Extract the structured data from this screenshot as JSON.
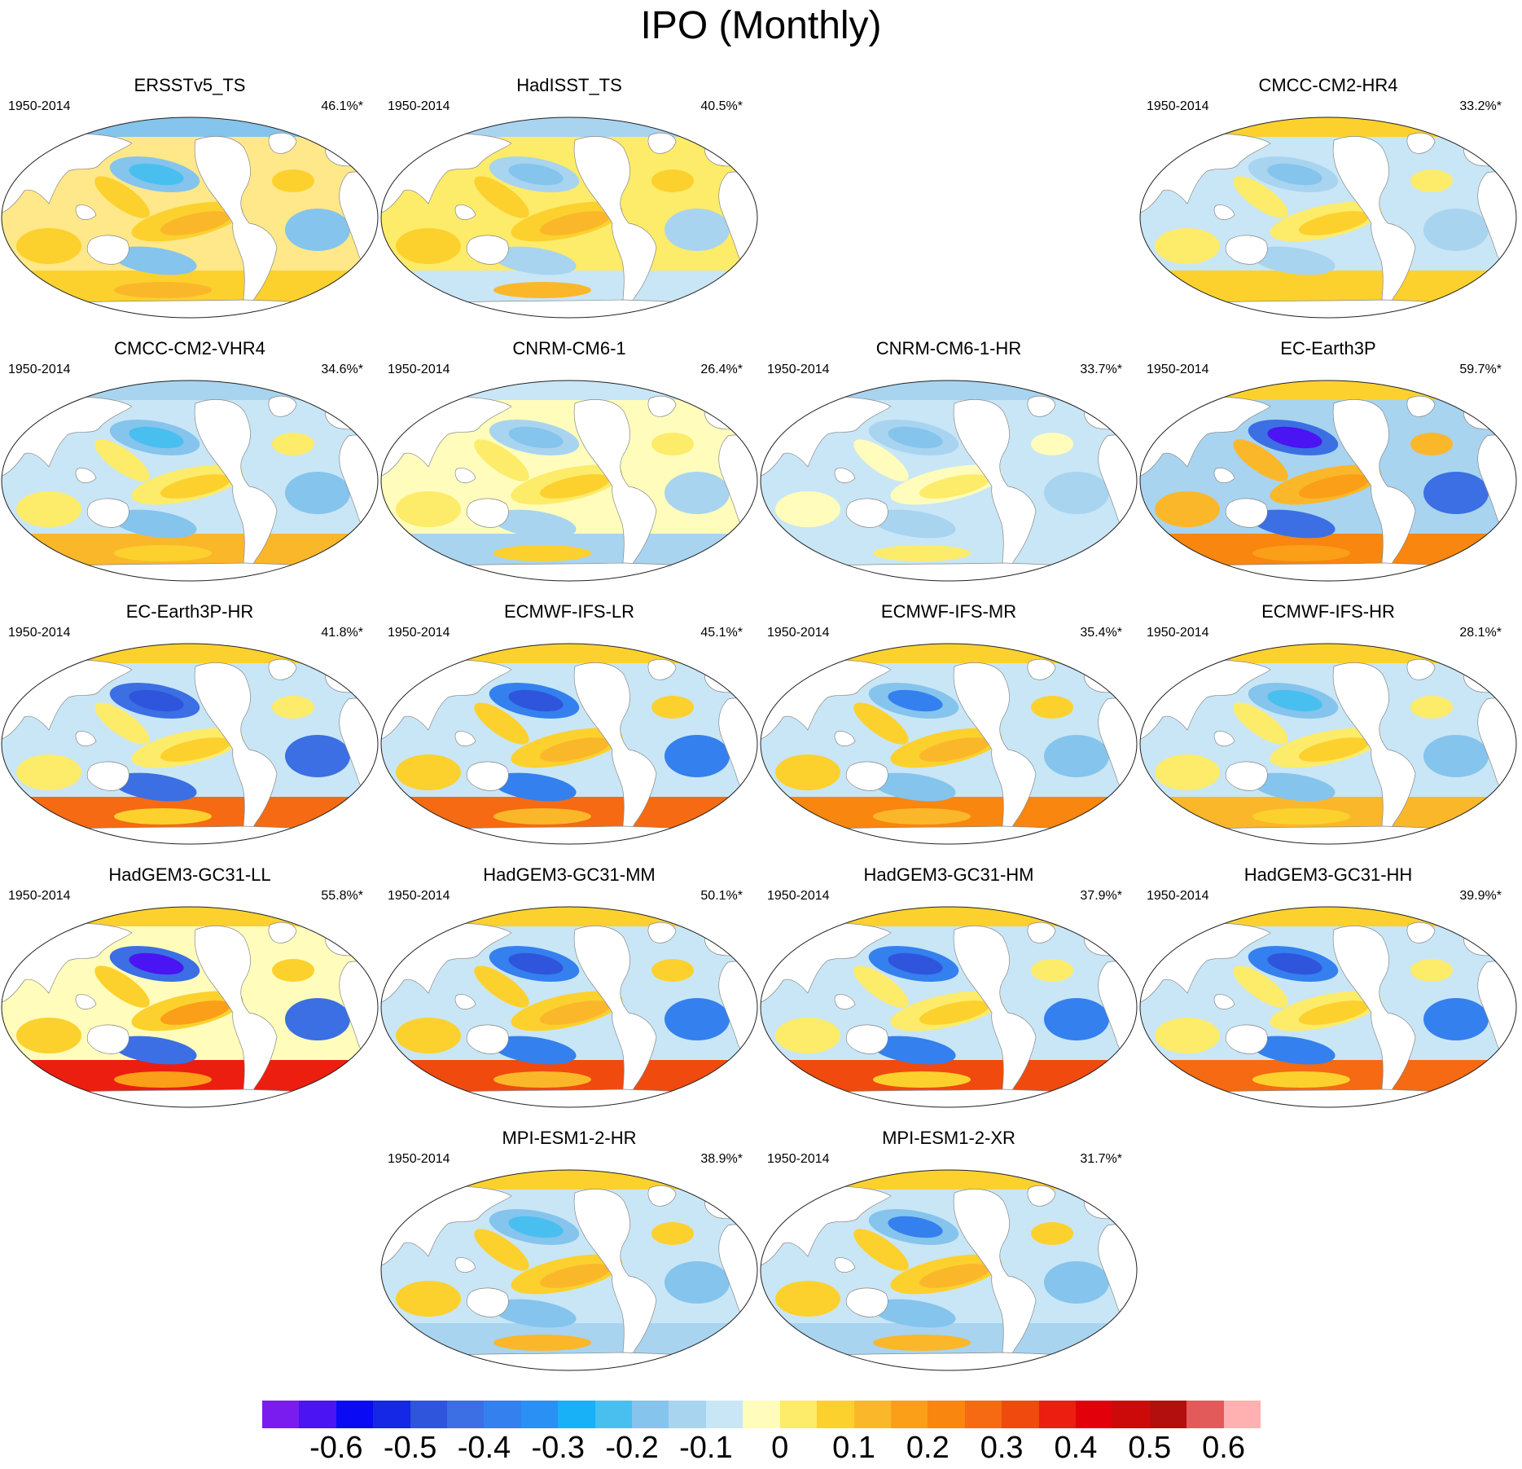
{
  "title": "IPO (Monthly)",
  "panels": [
    {
      "row": 0,
      "col": 0,
      "title": "ERSSTv5_TS",
      "period": "1950-2014",
      "pct": "46.1%*"
    },
    {
      "row": 0,
      "col": 1,
      "title": "HadISST_TS",
      "period": "1950-2014",
      "pct": "40.5%*"
    },
    {
      "row": 0,
      "col": 3,
      "title": "CMCC-CM2-HR4",
      "period": "1950-2014",
      "pct": "33.2%*"
    },
    {
      "row": 1,
      "col": 0,
      "title": "CMCC-CM2-VHR4",
      "period": "1950-2014",
      "pct": "34.6%*"
    },
    {
      "row": 1,
      "col": 1,
      "title": "CNRM-CM6-1",
      "period": "1950-2014",
      "pct": "26.4%*"
    },
    {
      "row": 1,
      "col": 2,
      "title": "CNRM-CM6-1-HR",
      "period": "1950-2014",
      "pct": "33.7%*"
    },
    {
      "row": 1,
      "col": 3,
      "title": "EC-Earth3P",
      "period": "1950-2014",
      "pct": "59.7%*"
    },
    {
      "row": 2,
      "col": 0,
      "title": "EC-Earth3P-HR",
      "period": "1950-2014",
      "pct": "41.8%*"
    },
    {
      "row": 2,
      "col": 1,
      "title": "ECMWF-IFS-LR",
      "period": "1950-2014",
      "pct": "45.1%*"
    },
    {
      "row": 2,
      "col": 2,
      "title": "ECMWF-IFS-MR",
      "period": "1950-2014",
      "pct": "35.4%*"
    },
    {
      "row": 2,
      "col": 3,
      "title": "ECMWF-IFS-HR",
      "period": "1950-2014",
      "pct": "28.1%*"
    },
    {
      "row": 3,
      "col": 0,
      "title": "HadGEM3-GC31-LL",
      "period": "1950-2014",
      "pct": "55.8%*"
    },
    {
      "row": 3,
      "col": 1,
      "title": "HadGEM3-GC31-MM",
      "period": "1950-2014",
      "pct": "50.1%*"
    },
    {
      "row": 3,
      "col": 2,
      "title": "HadGEM3-GC31-HM",
      "period": "1950-2014",
      "pct": "37.9%*"
    },
    {
      "row": 3,
      "col": 3,
      "title": "HadGEM3-GC31-HH",
      "period": "1950-2014",
      "pct": "39.9%*"
    },
    {
      "row": 4,
      "col": 1,
      "title": "MPI-ESM1-2-HR",
      "period": "1950-2014",
      "pct": "38.9%*"
    },
    {
      "row": 4,
      "col": 2,
      "title": "MPI-ESM1-2-XR",
      "period": "1950-2014",
      "pct": "31.7%*"
    }
  ],
  "colorbar": {
    "colors": [
      "#7a1cf0",
      "#4b14f2",
      "#0a0af5",
      "#1428e6",
      "#2f55dc",
      "#3b6fe3",
      "#3480ee",
      "#2a90f3",
      "#18b0f7",
      "#49bff0",
      "#85c4ec",
      "#a8d4f0",
      "#c9e6f6",
      "#fffcbc",
      "#fdeb6a",
      "#fcd12e",
      "#fbb72a",
      "#fa9f17",
      "#f8860f",
      "#f56a12",
      "#f04a0f",
      "#ec1e10",
      "#e2000a",
      "#cc0a0a",
      "#b30f0f",
      "#e35a5a",
      "#ffb0b0"
    ],
    "labels": [
      "-0.6",
      "-0.5",
      "-0.4",
      "-0.3",
      "-0.2",
      "-0.1",
      "0",
      "0.1",
      "0.2",
      "0.3",
      "0.4",
      "0.5",
      "0.6"
    ]
  }
}
